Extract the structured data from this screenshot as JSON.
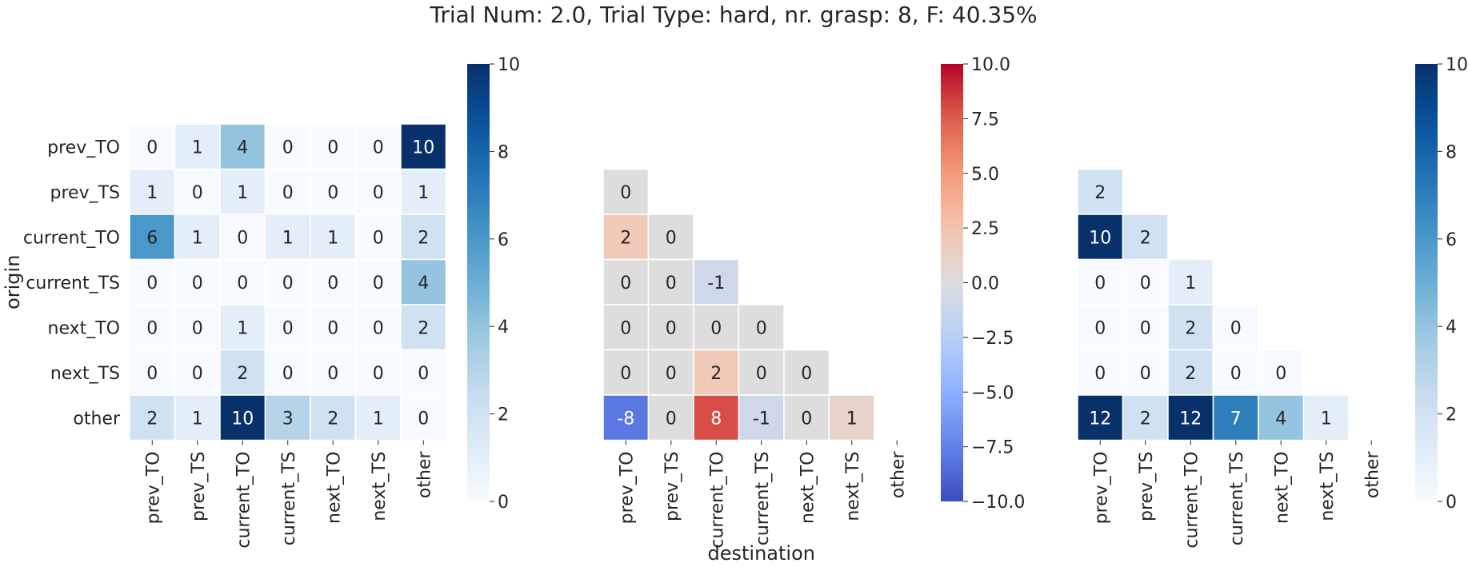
{
  "title": "Trial Num: 2.0, Trial Type: hard, nr. grasp: 8, F: 40.35%",
  "chart_data": [
    {
      "type": "heatmap",
      "colormap": "Blues",
      "vmin": 0,
      "vmax": 10,
      "ylabel": "origin",
      "xlabel": "",
      "row_labels": [
        "prev_TO",
        "prev_TS",
        "current_TO",
        "current_TS",
        "next_TO",
        "next_TS",
        "other"
      ],
      "col_labels": [
        "prev_TO",
        "prev_TS",
        "current_TO",
        "current_TS",
        "next_TO",
        "next_TS",
        "other"
      ],
      "values": [
        [
          0,
          1,
          4,
          0,
          0,
          0,
          10
        ],
        [
          1,
          0,
          1,
          0,
          0,
          0,
          1
        ],
        [
          6,
          1,
          0,
          1,
          1,
          0,
          2
        ],
        [
          0,
          0,
          0,
          0,
          0,
          0,
          4
        ],
        [
          0,
          0,
          1,
          0,
          0,
          0,
          2
        ],
        [
          0,
          0,
          2,
          0,
          0,
          0,
          0
        ],
        [
          2,
          1,
          10,
          3,
          2,
          1,
          0
        ]
      ],
      "mask": "none",
      "colorbar_ticks": [
        0,
        2,
        4,
        6,
        8,
        10
      ],
      "show_row_labels": true
    },
    {
      "type": "heatmap",
      "colormap": "coolwarm",
      "vmin": -10,
      "vmax": 10,
      "ylabel": "",
      "xlabel": "destination",
      "row_labels": [
        "prev_TO",
        "prev_TS",
        "current_TO",
        "current_TS",
        "next_TO",
        "next_TS",
        "other"
      ],
      "col_labels": [
        "prev_TO",
        "prev_TS",
        "current_TO",
        "current_TS",
        "next_TO",
        "next_TS",
        "other"
      ],
      "values": [
        [
          null,
          null,
          null,
          null,
          null,
          null,
          null
        ],
        [
          0,
          null,
          null,
          null,
          null,
          null,
          null
        ],
        [
          2,
          0,
          null,
          null,
          null,
          null,
          null
        ],
        [
          0,
          0,
          -1,
          null,
          null,
          null,
          null
        ],
        [
          0,
          0,
          0,
          0,
          null,
          null,
          null
        ],
        [
          0,
          0,
          2,
          0,
          0,
          null,
          null
        ],
        [
          -8,
          0,
          8,
          -1,
          0,
          1,
          null
        ]
      ],
      "mask": "upper-including-diagonal",
      "colorbar_ticks": [
        -10.0,
        -7.5,
        -5.0,
        -2.5,
        0.0,
        2.5,
        5.0,
        7.5,
        10.0
      ],
      "show_row_labels": false
    },
    {
      "type": "heatmap",
      "colormap": "Blues",
      "vmin": 0,
      "vmax": 10,
      "ylabel": "",
      "xlabel": "",
      "row_labels": [
        "prev_TO",
        "prev_TS",
        "current_TO",
        "current_TS",
        "next_TO",
        "next_TS",
        "other"
      ],
      "col_labels": [
        "prev_TO",
        "prev_TS",
        "current_TO",
        "current_TS",
        "next_TO",
        "next_TS",
        "other"
      ],
      "values": [
        [
          null,
          null,
          null,
          null,
          null,
          null,
          null
        ],
        [
          2,
          null,
          null,
          null,
          null,
          null,
          null
        ],
        [
          10,
          2,
          null,
          null,
          null,
          null,
          null
        ],
        [
          0,
          0,
          1,
          null,
          null,
          null,
          null
        ],
        [
          0,
          0,
          2,
          0,
          null,
          null,
          null
        ],
        [
          0,
          0,
          2,
          0,
          0,
          null,
          null
        ],
        [
          12,
          2,
          12,
          7,
          4,
          1,
          null
        ]
      ],
      "mask": "upper-including-diagonal",
      "colorbar_ticks": [
        0,
        2,
        4,
        6,
        8,
        10
      ],
      "show_row_labels": false
    }
  ]
}
